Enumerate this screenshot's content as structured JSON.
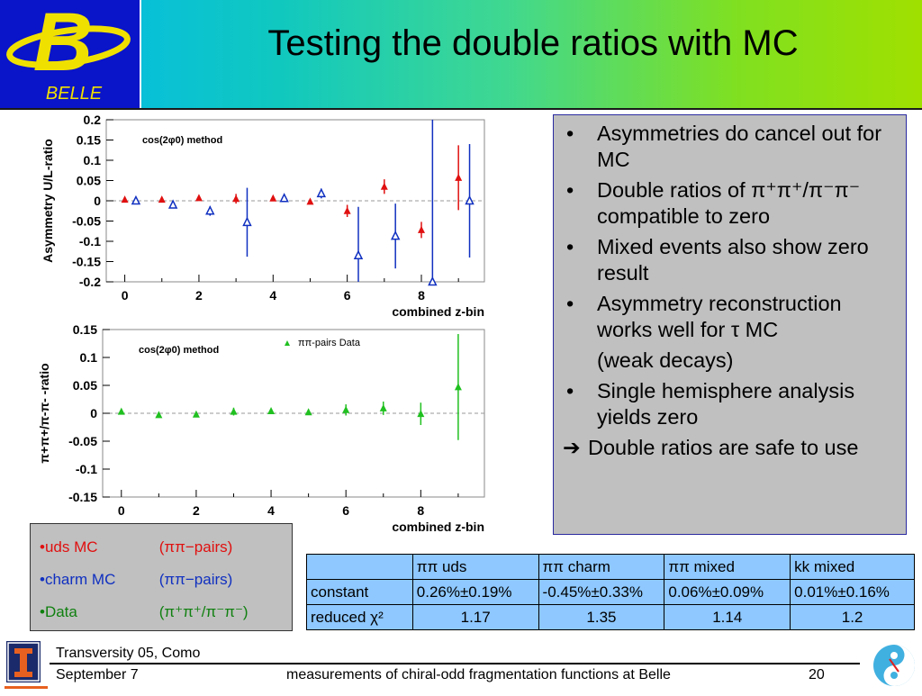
{
  "header": {
    "title": "Testing the double ratios with MC",
    "logo_text": "BELLE",
    "logo_letter": "B",
    "colors": {
      "logo_bg": "#0a14c8",
      "logo_fg": "#f0e000"
    }
  },
  "chart_data": [
    {
      "type": "scatter",
      "method_label": "cos(2φ0) method",
      "xlabel": "combined z-bin",
      "ylabel": "Asymmetry U/L-ratio",
      "xlim": [
        -0.5,
        9.7
      ],
      "ylim": [
        -0.2,
        0.2
      ],
      "xticks": [
        "0",
        "2",
        "4",
        "6",
        "8"
      ],
      "yticks": [
        "0.2",
        "0.15",
        "0.1",
        "0.05",
        "0",
        "-0.05",
        "-0.1",
        "-0.15",
        "-0.2"
      ],
      "series": [
        {
          "marker": "filled-triangle",
          "color": "#e01010",
          "x": [
            0,
            1,
            2,
            3,
            4,
            5,
            6,
            7,
            8,
            9
          ],
          "y": [
            0.003,
            0.003,
            0.007,
            0.005,
            0.006,
            -0.002,
            -0.025,
            0.035,
            -0.072,
            0.057
          ],
          "err": [
            0.004,
            0.004,
            0.005,
            0.012,
            0.004,
            0.004,
            0.015,
            0.018,
            0.02,
            0.08
          ]
        },
        {
          "marker": "open-triangle",
          "color": "#1030c0",
          "x": [
            0.3,
            1.3,
            2.3,
            3.3,
            4.3,
            5.3,
            6.3,
            7.3,
            8.3,
            9.3
          ],
          "y": [
            0.0,
            -0.01,
            -0.025,
            -0.053,
            0.006,
            0.018,
            -0.135,
            -0.087,
            -0.2,
            0.0
          ],
          "err": [
            0.004,
            0.005,
            0.012,
            0.085,
            0.004,
            0.012,
            0.12,
            0.08,
            0.5,
            0.14
          ]
        }
      ]
    },
    {
      "type": "scatter",
      "method_label": "cos(2φ0) method",
      "legend_entry": "ππ-pairs Data",
      "xlabel": "combined z-bin",
      "ylabel": "π+π+/π-π- -ratio",
      "xlim": [
        -0.5,
        9.7
      ],
      "ylim": [
        -0.15,
        0.15
      ],
      "xticks": [
        "0",
        "2",
        "4",
        "6",
        "8"
      ],
      "yticks": [
        "0.15",
        "0.1",
        "0.05",
        "0",
        "-0.05",
        "-0.1",
        "-0.15"
      ],
      "series": [
        {
          "name": "ππ-pairs Data",
          "marker": "filled-triangle",
          "color": "#20c020",
          "x": [
            0,
            1,
            2,
            3,
            4,
            5,
            6,
            7,
            8,
            9
          ],
          "y": [
            0.003,
            -0.003,
            -0.002,
            0.003,
            0.004,
            0.002,
            0.006,
            0.009,
            -0.001,
            0.047
          ],
          "err": [
            0.003,
            0.003,
            0.003,
            0.007,
            0.003,
            0.003,
            0.01,
            0.012,
            0.02,
            0.095
          ]
        }
      ]
    }
  ],
  "bullets": [
    {
      "text": "Asymmetries do cancel out for MC"
    },
    {
      "text": "Double ratios of π⁺π⁺/π⁻π⁻ compatible to zero"
    },
    {
      "text": "Mixed events also show zero result"
    },
    {
      "text": "Asymmetry reconstruction works well for τ MC",
      "extra": "(weak decays)"
    },
    {
      "text": "Single hemisphere analysis yields zero"
    }
  ],
  "bullet_marker": "•",
  "conclusion": {
    "arrow": "➔",
    "text": "Double ratios are safe to use"
  },
  "legend": [
    {
      "label": "•uds MC",
      "detail": "(ππ−pairs)",
      "color": "#e01010"
    },
    {
      "label": "•charm MC",
      "detail": "(ππ−pairs)",
      "color": "#1030c0"
    },
    {
      "label": "•Data",
      "detail": "(π⁺π⁺/π⁻π⁻)",
      "color": "#108010"
    }
  ],
  "table": {
    "headers": [
      "",
      "ππ uds",
      "ππ charm",
      "ππ mixed",
      "kk mixed"
    ],
    "rows": [
      [
        "constant",
        "0.26%±0.19%",
        "-0.45%±0.33%",
        "0.06%±0.09%",
        "0.01%±0.16%"
      ],
      [
        "reduced χ²",
        "1.17",
        "1.35",
        "1.14",
        "1.2"
      ]
    ]
  },
  "footer": {
    "left_line1": "Transversity 05, Como",
    "left_line2": "September 7",
    "center": "measurements of chiral-odd fragmentation functions at Belle",
    "page_number": "20"
  }
}
